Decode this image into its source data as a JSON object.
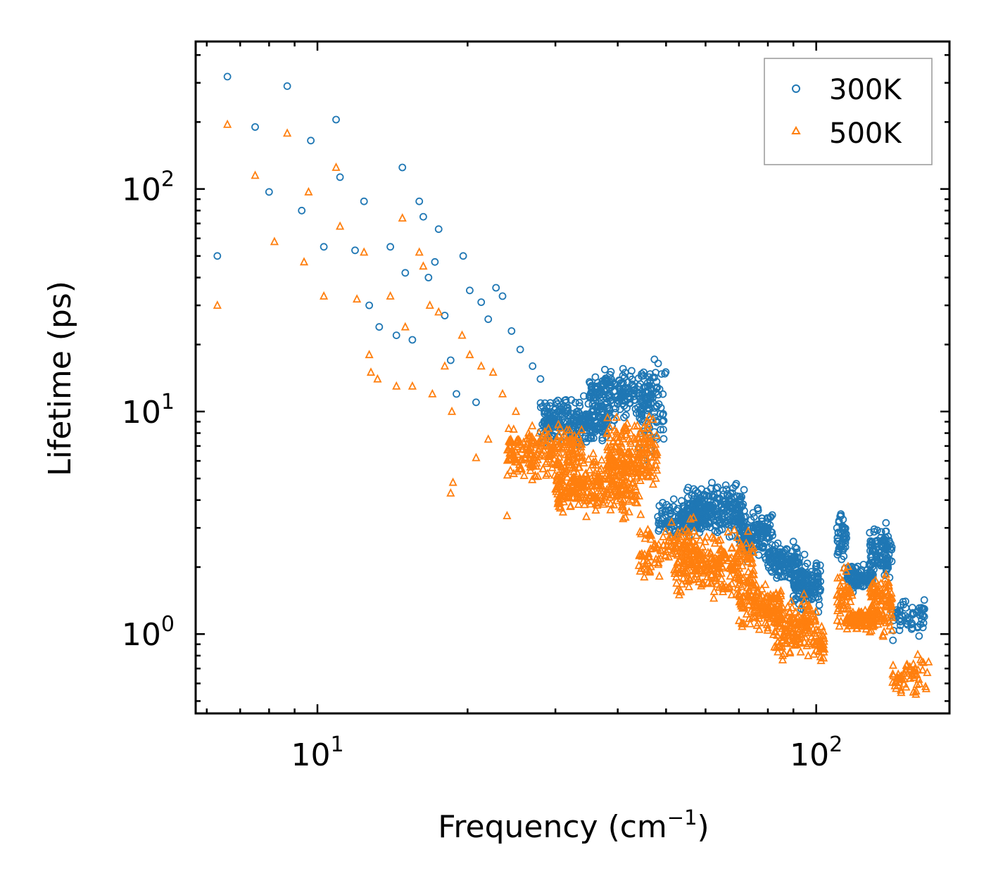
{
  "chart_data": {
    "type": "scatter",
    "title": "",
    "xlabel": "Frequency (cm",
    "xlabel_sup": "−1",
    "xlabel_close": ")",
    "ylabel": "Lifetime (ps)",
    "xscale": "log",
    "yscale": "log",
    "xlim": [
      5.7,
      185
    ],
    "ylim": [
      0.44,
      460
    ],
    "x_ticks": [
      {
        "value": 10,
        "base": "10",
        "exp": "1"
      },
      {
        "value": 100,
        "base": "10",
        "exp": "2"
      }
    ],
    "y_ticks": [
      {
        "value": 1,
        "base": "10",
        "exp": "0"
      },
      {
        "value": 10,
        "base": "10",
        "exp": "1"
      },
      {
        "value": 100,
        "base": "10",
        "exp": "2"
      }
    ],
    "legend_position": "top-right",
    "series": [
      {
        "name": "300K",
        "marker": "circle",
        "color": "#1f77b4",
        "anchor_points": [
          [
            6.3,
            50
          ],
          [
            6.6,
            320
          ],
          [
            7.5,
            190
          ],
          [
            8.0,
            97
          ],
          [
            8.7,
            290
          ],
          [
            9.3,
            80
          ],
          [
            9.7,
            165
          ],
          [
            10.3,
            55
          ],
          [
            10.9,
            205
          ],
          [
            11.1,
            113
          ],
          [
            11.9,
            53
          ],
          [
            12.4,
            88
          ],
          [
            12.7,
            30
          ],
          [
            13.3,
            24
          ],
          [
            14.0,
            55
          ],
          [
            14.4,
            22
          ],
          [
            14.8,
            125
          ],
          [
            15.0,
            42
          ],
          [
            15.5,
            21
          ],
          [
            16.0,
            88
          ],
          [
            16.3,
            75
          ],
          [
            16.7,
            40
          ],
          [
            17.2,
            47
          ],
          [
            17.5,
            66
          ],
          [
            18.0,
            27
          ],
          [
            18.5,
            17
          ],
          [
            19.0,
            12
          ],
          [
            19.6,
            50
          ],
          [
            20.2,
            35
          ],
          [
            20.8,
            11
          ],
          [
            21.3,
            31
          ],
          [
            22.0,
            26
          ],
          [
            22.8,
            36
          ],
          [
            23.5,
            33
          ],
          [
            24.5,
            23
          ],
          [
            25.5,
            19
          ],
          [
            27.0,
            16
          ],
          [
            28.0,
            14
          ]
        ],
        "clusters": [
          {
            "x": [
              28,
              38
            ],
            "y": [
              6.5,
              12.5
            ],
            "n": 260
          },
          {
            "x": [
              35,
              48
            ],
            "y": [
              8,
              18
            ],
            "n": 220
          },
          {
            "x": [
              44,
              50
            ],
            "y": [
              5,
              22
            ],
            "n": 60
          },
          {
            "x": [
              48,
              60
            ],
            "y": [
              2.6,
              4.2
            ],
            "n": 130
          },
          {
            "x": [
              55,
              72
            ],
            "y": [
              2.6,
              5.0
            ],
            "n": 260
          },
          {
            "x": [
              70,
              82
            ],
            "y": [
              2.0,
              4.0
            ],
            "n": 140
          },
          {
            "x": [
              80,
              92
            ],
            "y": [
              1.6,
              2.8
            ],
            "n": 130
          },
          {
            "x": [
              90,
              102
            ],
            "y": [
              1.2,
              2.4
            ],
            "n": 150
          },
          {
            "x": [
              110,
              115
            ],
            "y": [
              1.9,
              3.8
            ],
            "n": 50
          },
          {
            "x": [
              115,
              130
            ],
            "y": [
              1.5,
              2.2
            ],
            "n": 100
          },
          {
            "x": [
              128,
              142
            ],
            "y": [
              1.6,
              3.4
            ],
            "n": 110
          },
          {
            "x": [
              142,
              165
            ],
            "y": [
              0.9,
              1.5
            ],
            "n": 60
          }
        ]
      },
      {
        "name": "500K",
        "marker": "triangle",
        "color": "#ff7f0e",
        "anchor_points": [
          [
            6.3,
            30
          ],
          [
            6.6,
            195
          ],
          [
            7.5,
            115
          ],
          [
            8.2,
            58
          ],
          [
            8.7,
            178
          ],
          [
            9.4,
            47
          ],
          [
            9.6,
            97
          ],
          [
            10.3,
            33
          ],
          [
            10.9,
            125
          ],
          [
            11.1,
            68
          ],
          [
            12.0,
            32
          ],
          [
            12.4,
            52
          ],
          [
            12.7,
            18
          ],
          [
            12.8,
            15
          ],
          [
            13.2,
            14
          ],
          [
            14.0,
            33
          ],
          [
            14.4,
            13
          ],
          [
            14.8,
            74
          ],
          [
            15.0,
            24
          ],
          [
            15.5,
            13
          ],
          [
            16.0,
            52
          ],
          [
            16.3,
            45
          ],
          [
            16.8,
            30
          ],
          [
            17.0,
            12
          ],
          [
            17.5,
            28
          ],
          [
            18.0,
            16
          ],
          [
            18.6,
            10
          ],
          [
            18.7,
            4.8
          ],
          [
            18.5,
            4.3
          ],
          [
            19.5,
            22
          ],
          [
            20.2,
            18
          ],
          [
            20.8,
            6.2
          ],
          [
            21.3,
            16
          ],
          [
            22.0,
            7.5
          ],
          [
            22.5,
            15
          ],
          [
            23.5,
            12
          ],
          [
            24.0,
            3.4
          ],
          [
            25.0,
            10
          ],
          [
            26.5,
            8
          ]
        ],
        "clusters": [
          {
            "x": [
              24,
              34
            ],
            "y": [
              4.5,
              9.5
            ],
            "n": 220
          },
          {
            "x": [
              30,
              44
            ],
            "y": [
              3.1,
              7.0
            ],
            "n": 300
          },
          {
            "x": [
              38,
              48
            ],
            "y": [
              4.0,
              10.5
            ],
            "n": 200
          },
          {
            "x": [
              44,
              58
            ],
            "y": [
              1.6,
              3.6
            ],
            "n": 120
          },
          {
            "x": [
              52,
              75
            ],
            "y": [
              1.3,
              3.1
            ],
            "n": 280
          },
          {
            "x": [
              70,
              85
            ],
            "y": [
              0.95,
              1.9
            ],
            "n": 150
          },
          {
            "x": [
              82,
              100
            ],
            "y": [
              0.72,
              1.6
            ],
            "n": 170
          },
          {
            "x": [
              100,
              104
            ],
            "y": [
              0.68,
              1.2
            ],
            "n": 30
          },
          {
            "x": [
              110,
              118
            ],
            "y": [
              0.9,
              2.4
            ],
            "n": 50
          },
          {
            "x": [
              115,
              130
            ],
            "y": [
              1.0,
              1.35
            ],
            "n": 100
          },
          {
            "x": [
              128,
              142
            ],
            "y": [
              0.9,
              2.1
            ],
            "n": 110
          },
          {
            "x": [
              142,
              168
            ],
            "y": [
              0.5,
              0.85
            ],
            "n": 60
          }
        ]
      }
    ]
  }
}
